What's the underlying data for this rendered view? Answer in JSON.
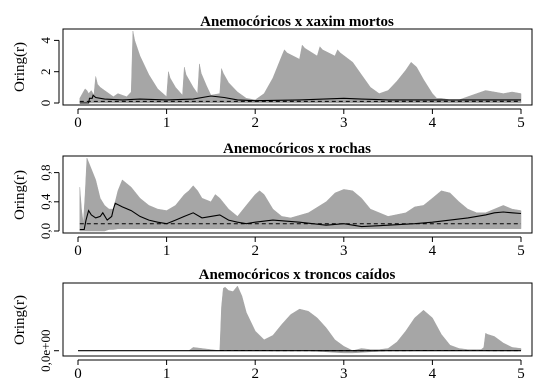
{
  "chart_data": [
    {
      "type": "area",
      "title": "Anemocóricos x xaxim mortos",
      "xlabel": "",
      "ylabel": "Oring(r)",
      "xlim": [
        0,
        5
      ],
      "ylim": [
        0,
        4.6
      ],
      "x_ticks": [
        "0",
        "1",
        "2",
        "3",
        "4",
        "5"
      ],
      "x_tick_values": [
        0,
        1,
        2,
        3,
        4,
        5
      ],
      "y_ticks": [
        "0",
        "2",
        "4"
      ],
      "y_tick_values": [
        0,
        2,
        4
      ],
      "envelope": {
        "x": [
          0.02,
          0.05,
          0.08,
          0.1,
          0.12,
          0.15,
          0.18,
          0.2,
          0.22,
          0.25,
          0.3,
          0.35,
          0.4,
          0.45,
          0.5,
          0.55,
          0.6,
          0.62,
          0.64,
          0.7,
          0.8,
          0.9,
          1.0,
          1.02,
          1.04,
          1.1,
          1.18,
          1.2,
          1.22,
          1.3,
          1.35,
          1.37,
          1.39,
          1.45,
          1.5,
          1.6,
          1.62,
          1.64,
          1.7,
          1.8,
          1.9,
          2.0,
          2.1,
          2.2,
          2.3,
          2.33,
          2.36,
          2.5,
          2.53,
          2.56,
          2.7,
          2.73,
          2.76,
          2.9,
          2.93,
          2.96,
          3.1,
          3.2,
          3.3,
          3.4,
          3.5,
          3.6,
          3.7,
          3.76,
          3.82,
          3.9,
          4.0,
          4.05,
          4.1,
          4.2,
          4.3,
          4.4,
          4.5,
          4.6,
          4.7,
          4.8,
          4.9,
          5.0
        ],
        "upper": [
          0.3,
          0.6,
          0.9,
          0.8,
          0.6,
          0.8,
          0.5,
          1.7,
          1.2,
          1.0,
          0.8,
          0.6,
          0.4,
          0.6,
          0.5,
          0.4,
          0.7,
          4.6,
          4.0,
          3.0,
          1.8,
          0.9,
          0.4,
          2.0,
          1.6,
          1.0,
          0.5,
          2.3,
          1.8,
          1.0,
          0.6,
          2.5,
          1.9,
          1.1,
          0.5,
          0.6,
          2.2,
          1.9,
          1.3,
          0.7,
          0.3,
          0.2,
          0.6,
          1.6,
          3.0,
          3.4,
          3.2,
          2.8,
          3.7,
          3.5,
          3.0,
          3.6,
          3.4,
          3.0,
          3.4,
          3.2,
          2.6,
          1.8,
          1.0,
          0.6,
          0.8,
          1.4,
          2.1,
          2.6,
          2.3,
          1.5,
          0.6,
          0.3,
          0.3,
          0.2,
          0.2,
          0.4,
          0.6,
          0.8,
          0.7,
          0.6,
          0.7,
          0.6
        ],
        "lower": [
          0,
          0,
          0,
          0,
          0,
          0,
          0,
          0,
          0,
          0,
          0,
          0,
          0,
          0,
          0,
          0,
          0,
          0,
          0,
          0,
          0,
          0,
          0,
          0,
          0,
          0,
          0,
          0,
          0,
          0,
          0,
          0,
          0,
          0,
          0,
          0,
          0,
          0,
          0,
          0,
          0,
          0,
          0,
          0,
          0,
          0,
          0,
          0,
          0,
          0,
          0,
          0,
          0,
          0,
          0,
          0,
          0,
          0,
          0,
          0,
          0,
          0,
          0,
          0,
          0,
          0,
          0,
          0,
          0,
          0,
          0,
          0,
          0,
          0,
          0,
          0,
          0,
          0
        ]
      },
      "observed": {
        "x": [
          0.02,
          0.12,
          0.13,
          0.16,
          0.17,
          0.2,
          0.3,
          0.5,
          0.7,
          1.0,
          1.3,
          1.5,
          1.65,
          1.8,
          2.0,
          2.5,
          3.0,
          3.2,
          3.5,
          4.0,
          4.5,
          5.0
        ],
        "y": [
          0,
          0,
          0.3,
          0.3,
          0.5,
          0.35,
          0.25,
          0.2,
          0.25,
          0.2,
          0.25,
          0.45,
          0.35,
          0.2,
          0.15,
          0.2,
          0.3,
          0.25,
          0.2,
          0.2,
          0.2,
          0.2
        ]
      },
      "theoretical": {
        "x": [
          0.02,
          5.0
        ],
        "y": [
          0.1,
          0.1
        ]
      }
    },
    {
      "type": "area",
      "title": "Anemocóricos x rochas",
      "xlabel": "",
      "ylabel": "Oring(r)",
      "xlim": [
        0,
        5
      ],
      "ylim": [
        0,
        1.0
      ],
      "x_ticks": [
        "0",
        "1",
        "2",
        "3",
        "4",
        "5"
      ],
      "x_tick_values": [
        0,
        1,
        2,
        3,
        4,
        5
      ],
      "y_ticks": [
        "0,0",
        "0,4",
        "0,8"
      ],
      "y_tick_values": [
        0,
        0.4,
        0.8
      ],
      "envelope": {
        "x": [
          0.02,
          0.04,
          0.06,
          0.08,
          0.1,
          0.15,
          0.2,
          0.25,
          0.3,
          0.35,
          0.4,
          0.45,
          0.5,
          0.6,
          0.7,
          0.8,
          0.9,
          1.0,
          1.1,
          1.2,
          1.25,
          1.3,
          1.35,
          1.4,
          1.5,
          1.55,
          1.6,
          1.7,
          1.8,
          1.9,
          2.0,
          2.05,
          2.1,
          2.2,
          2.3,
          2.4,
          2.6,
          2.8,
          2.9,
          3.0,
          3.1,
          3.2,
          3.3,
          3.5,
          3.7,
          3.8,
          3.9,
          4.0,
          4.1,
          4.2,
          4.3,
          4.4,
          4.5,
          4.6,
          4.7,
          4.8,
          4.9,
          5.0
        ],
        "upper": [
          0.6,
          0.3,
          0.1,
          0.5,
          1.0,
          0.85,
          0.7,
          0.45,
          0.35,
          0.3,
          0.3,
          0.55,
          0.7,
          0.6,
          0.45,
          0.35,
          0.3,
          0.28,
          0.35,
          0.5,
          0.55,
          0.62,
          0.55,
          0.45,
          0.4,
          0.5,
          0.45,
          0.3,
          0.2,
          0.35,
          0.5,
          0.55,
          0.5,
          0.3,
          0.2,
          0.18,
          0.25,
          0.4,
          0.52,
          0.57,
          0.55,
          0.45,
          0.3,
          0.2,
          0.25,
          0.33,
          0.35,
          0.45,
          0.55,
          0.52,
          0.4,
          0.3,
          0.25,
          0.25,
          0.3,
          0.35,
          0.3,
          0.28
        ],
        "lower": [
          0,
          0,
          0,
          0,
          0,
          0,
          0,
          0,
          0,
          0.02,
          0.02,
          0.03,
          0.03,
          0.03,
          0.03,
          0.03,
          0.03,
          0.03,
          0.03,
          0.03,
          0.03,
          0.03,
          0.03,
          0.03,
          0.03,
          0.03,
          0.03,
          0.03,
          0.03,
          0.03,
          0.03,
          0.03,
          0.03,
          0.03,
          0.03,
          0.03,
          0.03,
          0.03,
          0.03,
          0.03,
          0.03,
          0.03,
          0.03,
          0.03,
          0.03,
          0.03,
          0.03,
          0.03,
          0.03,
          0.03,
          0.03,
          0.03,
          0.03,
          0.03,
          0.03,
          0.03,
          0.03,
          0.03
        ]
      },
      "observed": {
        "x": [
          0.02,
          0.07,
          0.09,
          0.12,
          0.15,
          0.2,
          0.25,
          0.28,
          0.33,
          0.38,
          0.4,
          0.42,
          0.5,
          0.6,
          0.7,
          0.8,
          0.9,
          1.0,
          1.1,
          1.2,
          1.3,
          1.4,
          1.5,
          1.6,
          1.7,
          1.8,
          1.9,
          2.0,
          2.2,
          2.5,
          2.8,
          3.0,
          3.2,
          3.5,
          3.8,
          4.0,
          4.2,
          4.4,
          4.5,
          4.6,
          4.7,
          4.8,
          4.9,
          5.0
        ],
        "y": [
          0.02,
          0.02,
          0.15,
          0.28,
          0.22,
          0.18,
          0.2,
          0.25,
          0.15,
          0.2,
          0.3,
          0.38,
          0.33,
          0.28,
          0.2,
          0.15,
          0.12,
          0.1,
          0.15,
          0.2,
          0.25,
          0.18,
          0.2,
          0.22,
          0.15,
          0.12,
          0.1,
          0.12,
          0.15,
          0.12,
          0.08,
          0.1,
          0.06,
          0.08,
          0.1,
          0.12,
          0.15,
          0.18,
          0.2,
          0.22,
          0.25,
          0.26,
          0.25,
          0.24
        ]
      },
      "theoretical": {
        "x": [
          0.02,
          5.0
        ],
        "y": [
          0.1,
          0.1
        ]
      }
    },
    {
      "type": "area",
      "title": "Anemocóricos x troncos caídos",
      "xlabel": "",
      "ylabel": "Oring(r)",
      "xlim": [
        0,
        5
      ],
      "ylim": [
        -3e-08,
        6e-07
      ],
      "x_ticks": [
        "0",
        "1",
        "2",
        "3",
        "4",
        "5"
      ],
      "x_tick_values": [
        0,
        1,
        2,
        3,
        4,
        5
      ],
      "y_ticks": [
        "0,0e+00"
      ],
      "y_tick_values": [
        0
      ],
      "envelope": {
        "x": [
          1.25,
          1.3,
          1.4,
          1.5,
          1.6,
          1.62,
          1.64,
          1.66,
          1.7,
          1.75,
          1.8,
          1.85,
          1.9,
          2.0,
          2.1,
          2.2,
          2.3,
          2.4,
          2.5,
          2.6,
          2.7,
          2.8,
          2.9,
          3.0,
          3.1,
          3.2,
          3.3,
          3.4,
          3.5,
          3.6,
          3.7,
          3.8,
          3.9,
          4.0,
          4.1,
          4.2,
          4.3,
          4.4,
          4.5,
          4.55,
          4.58,
          4.6,
          4.62,
          4.7,
          4.8,
          4.9,
          5.0
        ],
        "upper": [
          0,
          3e-08,
          2e-08,
          1e-08,
          0,
          4e-07,
          5.7e-07,
          5.8e-07,
          5.5e-07,
          5.4e-07,
          5.9e-07,
          5e-07,
          3.5e-07,
          1.8e-07,
          1e-07,
          1.4e-07,
          2.4e-07,
          3.3e-07,
          3.8e-07,
          3.6e-07,
          3e-07,
          2.1e-07,
          1e-07,
          4e-08,
          0,
          2e-08,
          1e-08,
          1e-08,
          2e-08,
          8e-08,
          1.8e-07,
          3e-07,
          3.7e-07,
          3e-07,
          1.5e-07,
          5e-08,
          2e-08,
          1e-08,
          1e-08,
          1e-08,
          3e-08,
          1.6e-07,
          1.5e-07,
          1.3e-07,
          7e-08,
          3e-08,
          2e-08
        ],
        "lower": [
          0,
          0,
          0,
          0,
          0,
          0,
          0,
          0,
          0,
          0,
          0,
          0,
          0,
          0,
          0,
          0,
          0,
          0,
          0,
          0,
          -5e-09,
          -1e-08,
          -1.5e-08,
          -2e-08,
          -2e-08,
          -1.5e-08,
          -1e-08,
          -5e-09,
          0,
          0,
          0,
          0,
          0,
          0,
          0,
          0,
          0,
          0,
          0,
          0,
          0,
          0,
          0,
          0,
          0,
          0,
          0
        ]
      },
      "observed": {
        "x": [
          0.0,
          5.0
        ],
        "y": [
          0,
          0
        ]
      },
      "theoretical": {
        "x": [
          1.6,
          2.5,
          3.2,
          4.0,
          5.0
        ],
        "y": [
          2e-09,
          1e-09,
          0.0,
          2e-09,
          1e-09
        ]
      }
    }
  ]
}
